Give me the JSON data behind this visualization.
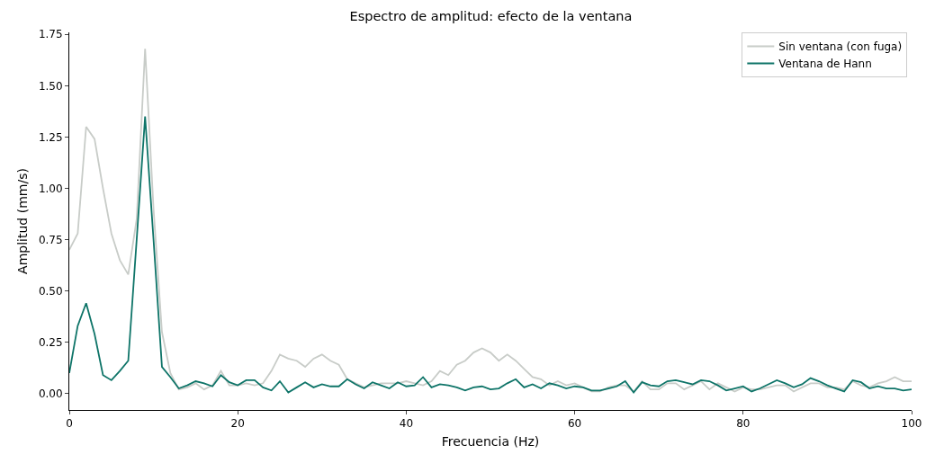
{
  "chart_data": {
    "type": "line",
    "title": "Espectro de amplitud: efecto de la ventana",
    "xlabel": "Frecuencia (Hz)",
    "ylabel": "Amplitud (mm/s)",
    "x": [
      0,
      1,
      2,
      3,
      4,
      5,
      6,
      7,
      8,
      9,
      10,
      11,
      12,
      13,
      14,
      15,
      16,
      17,
      18,
      19,
      20,
      21,
      22,
      23,
      24,
      25,
      26,
      27,
      28,
      29,
      30,
      31,
      32,
      33,
      34,
      35,
      36,
      37,
      38,
      39,
      40,
      41,
      42,
      43,
      44,
      45,
      46,
      47,
      48,
      49,
      50,
      51,
      52,
      53,
      54,
      55,
      56,
      57,
      58,
      59,
      60,
      61,
      62,
      63,
      64,
      65,
      66,
      67,
      68,
      69,
      70,
      71,
      72,
      73,
      74,
      75,
      76,
      77,
      78,
      79,
      80,
      81,
      82,
      83,
      84,
      85,
      86,
      87,
      88,
      89,
      90,
      91,
      92,
      93,
      94,
      95,
      96,
      97,
      98,
      99,
      100
    ],
    "series": [
      {
        "name": "Sin ventana (con fuga)",
        "color": "#c8ccc8",
        "values": [
          0.7,
          0.78,
          1.3,
          1.24,
          1.0,
          0.78,
          0.65,
          0.58,
          0.85,
          1.68,
          0.9,
          0.3,
          0.1,
          0.02,
          0.03,
          0.05,
          0.02,
          0.04,
          0.11,
          0.04,
          0.04,
          0.05,
          0.04,
          0.05,
          0.11,
          0.19,
          0.17,
          0.16,
          0.13,
          0.17,
          0.19,
          0.16,
          0.14,
          0.07,
          0.05,
          0.03,
          0.04,
          0.05,
          0.05,
          0.05,
          0.06,
          0.05,
          0.04,
          0.06,
          0.11,
          0.09,
          0.14,
          0.16,
          0.2,
          0.22,
          0.2,
          0.16,
          0.19,
          0.16,
          0.12,
          0.08,
          0.07,
          0.04,
          0.06,
          0.04,
          0.05,
          0.03,
          0.01,
          0.01,
          0.03,
          0.04,
          0.04,
          0.01,
          0.06,
          0.02,
          0.02,
          0.05,
          0.05,
          0.02,
          0.04,
          0.06,
          0.02,
          0.05,
          0.03,
          0.01,
          0.03,
          0.02,
          0.02,
          0.03,
          0.04,
          0.04,
          0.01,
          0.03,
          0.05,
          0.05,
          0.03,
          0.03,
          0.02,
          0.06,
          0.04,
          0.03,
          0.05,
          0.06,
          0.08,
          0.06,
          0.06
        ]
      },
      {
        "name": "Ventana de Hann",
        "color": "#0e7468",
        "values": [
          0.1,
          0.33,
          0.44,
          0.29,
          0.09,
          0.065,
          0.11,
          0.16,
          0.75,
          1.35,
          0.75,
          0.13,
          0.08,
          0.025,
          0.04,
          0.06,
          0.05,
          0.035,
          0.09,
          0.055,
          0.04,
          0.065,
          0.065,
          0.03,
          0.015,
          0.06,
          0.005,
          0.03,
          0.055,
          0.03,
          0.045,
          0.035,
          0.035,
          0.07,
          0.045,
          0.025,
          0.055,
          0.04,
          0.025,
          0.055,
          0.035,
          0.04,
          0.08,
          0.03,
          0.045,
          0.04,
          0.03,
          0.015,
          0.03,
          0.035,
          0.02,
          0.025,
          0.05,
          0.07,
          0.03,
          0.045,
          0.025,
          0.05,
          0.04,
          0.025,
          0.035,
          0.03,
          0.015,
          0.015,
          0.025,
          0.035,
          0.06,
          0.005,
          0.055,
          0.04,
          0.035,
          0.06,
          0.065,
          0.055,
          0.045,
          0.065,
          0.06,
          0.04,
          0.015,
          0.025,
          0.035,
          0.01,
          0.025,
          0.045,
          0.065,
          0.05,
          0.03,
          0.045,
          0.075,
          0.06,
          0.04,
          0.025,
          0.01,
          0.065,
          0.055,
          0.025,
          0.035,
          0.025,
          0.025,
          0.015,
          0.02
        ]
      }
    ],
    "xlim": [
      0,
      100
    ],
    "xticks": [
      0,
      20,
      40,
      60,
      80,
      100
    ],
    "ylim": [
      -0.08,
      1.76
    ],
    "yticks": [
      {
        "value": 0,
        "label": "0.00"
      },
      {
        "value": 0.25,
        "label": "0.25"
      },
      {
        "value": 0.5,
        "label": "0.50"
      },
      {
        "value": 0.75,
        "label": "0.75"
      },
      {
        "value": 1,
        "label": "1.00"
      },
      {
        "value": 1.25,
        "label": "1.25"
      },
      {
        "value": 1.5,
        "label": "1.50"
      },
      {
        "value": 1.75,
        "label": "1.75"
      }
    ],
    "grid": false,
    "legend": "top right",
    "marker": "none",
    "line_style": "solid"
  }
}
